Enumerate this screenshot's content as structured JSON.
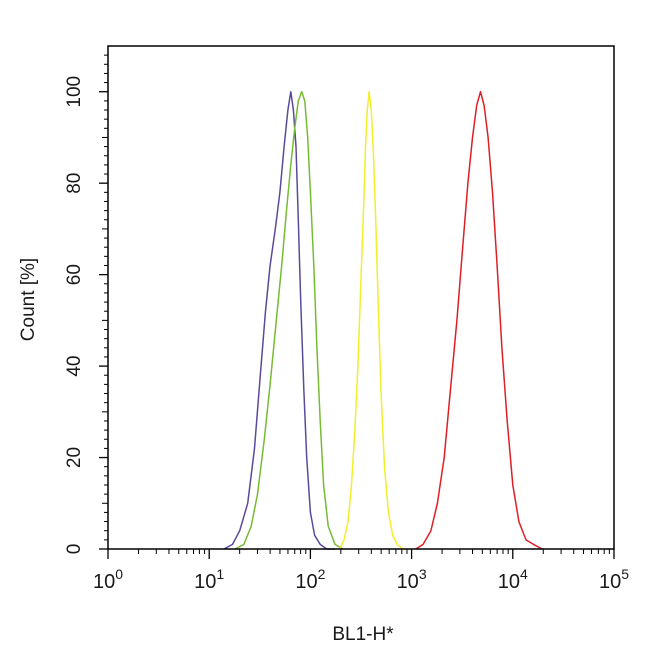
{
  "chart_data": {
    "type": "line",
    "title": "",
    "xlabel": "BL1-H*",
    "ylabel": "Count  [%]",
    "x_scale": "log",
    "xlim": [
      1,
      100000
    ],
    "ylim": [
      0,
      110
    ],
    "grid": false,
    "x_ticks": [
      {
        "base": "10",
        "exp": "0",
        "value": 1
      },
      {
        "base": "10",
        "exp": "1",
        "value": 10
      },
      {
        "base": "10",
        "exp": "2",
        "value": 100
      },
      {
        "base": "10",
        "exp": "3",
        "value": 1000
      },
      {
        "base": "10",
        "exp": "4",
        "value": 10000
      },
      {
        "base": "10",
        "exp": "5",
        "value": 100000
      }
    ],
    "y_ticks": [
      "0",
      "20",
      "40",
      "60",
      "80",
      "100"
    ],
    "series": [
      {
        "color": "#5b4a9a",
        "x": [
          14,
          17,
          20,
          24,
          28,
          32,
          36,
          40,
          45,
          50,
          55,
          60,
          64,
          68,
          72,
          76,
          80,
          86,
          92,
          100,
          110,
          125,
          145,
          175
        ],
        "y": [
          0,
          1,
          4,
          10,
          22,
          38,
          52,
          62,
          70,
          78,
          88,
          96,
          100,
          96,
          88,
          72,
          55,
          35,
          20,
          8,
          3,
          1,
          0,
          0
        ]
      },
      {
        "color": "#77bb33",
        "x": [
          18,
          22,
          26,
          30,
          35,
          40,
          46,
          52,
          58,
          64,
          70,
          76,
          82,
          88,
          94,
          100,
          108,
          116,
          125,
          135,
          150,
          175,
          210
        ],
        "y": [
          0,
          1,
          5,
          12,
          24,
          36,
          50,
          62,
          74,
          84,
          92,
          98,
          100,
          98,
          90,
          78,
          62,
          44,
          28,
          14,
          5,
          1,
          0
        ]
      },
      {
        "color": "#f2ef2a",
        "x": [
          195,
          215,
          235,
          255,
          275,
          295,
          315,
          335,
          350,
          365,
          380,
          400,
          420,
          445,
          470,
          500,
          540,
          590,
          650,
          720,
          820
        ],
        "y": [
          0,
          2,
          6,
          14,
          26,
          40,
          58,
          74,
          88,
          96,
          100,
          96,
          86,
          70,
          52,
          34,
          18,
          8,
          3,
          1,
          0
        ]
      },
      {
        "color": "#dd1f26",
        "x": [
          1100,
          1300,
          1550,
          1800,
          2100,
          2400,
          2800,
          3200,
          3600,
          4000,
          4400,
          4800,
          5200,
          5700,
          6300,
          7000,
          7800,
          8800,
          10000,
          11500,
          13500,
          16000,
          19500
        ],
        "y": [
          0,
          1,
          4,
          10,
          20,
          34,
          50,
          66,
          80,
          90,
          97,
          100,
          97,
          90,
          78,
          62,
          44,
          28,
          14,
          6,
          2,
          1,
          0
        ]
      }
    ]
  }
}
